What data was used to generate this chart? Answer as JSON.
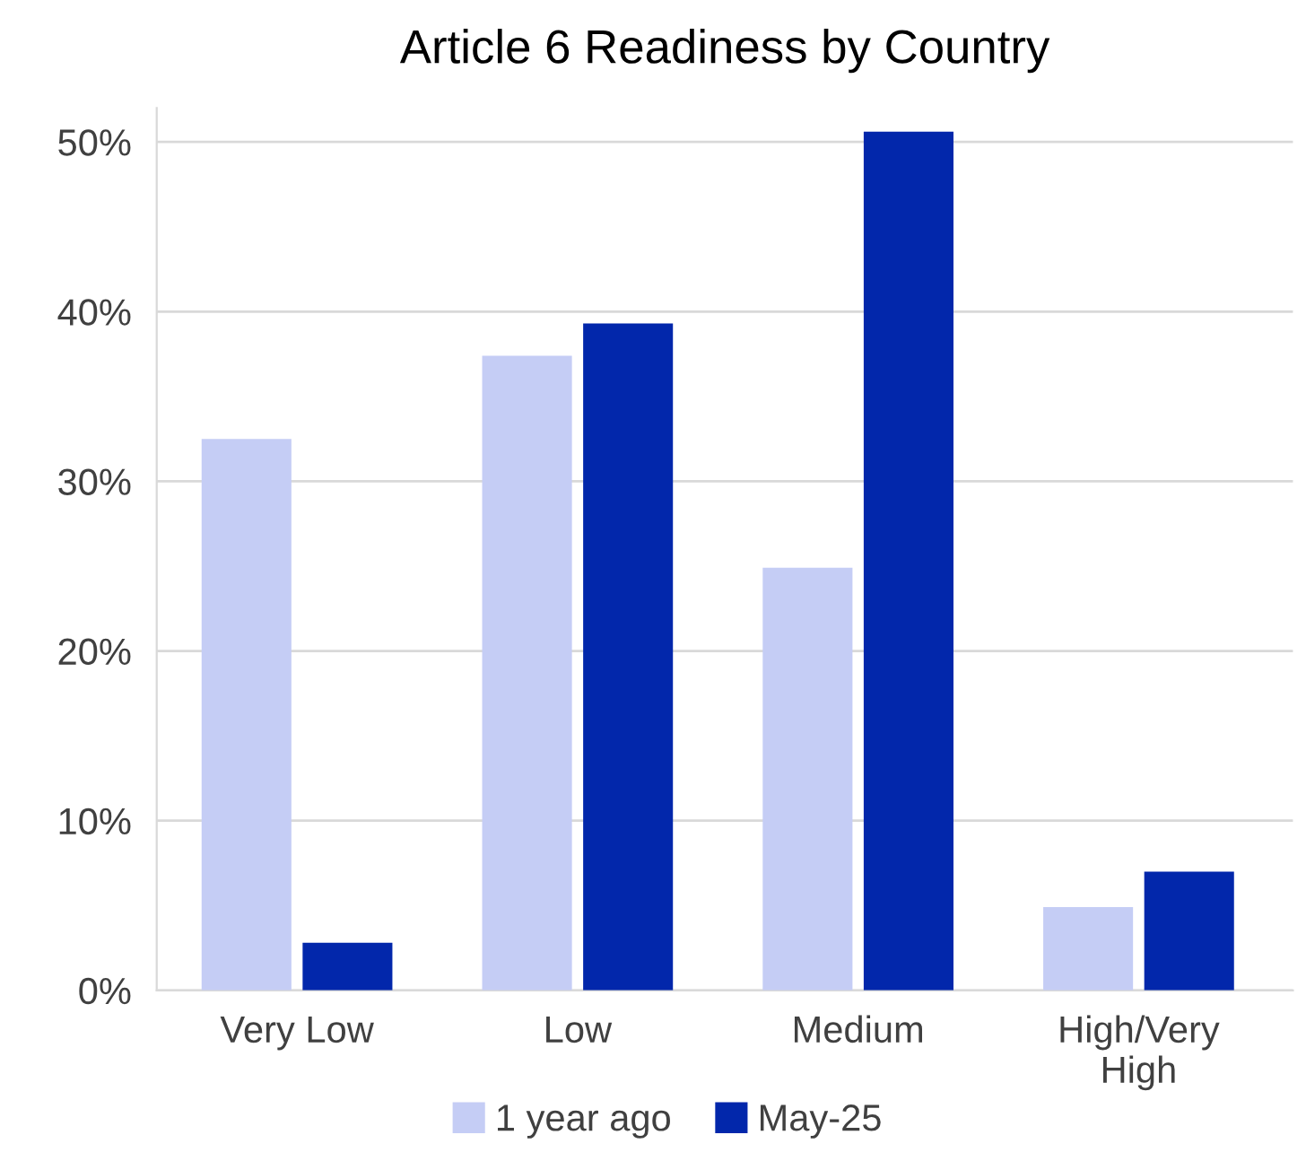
{
  "chart_data": {
    "type": "bar",
    "title": "Article 6 Readiness by Country",
    "categories": [
      "Very Low",
      "Low",
      "Medium",
      "High/Very\nHigh"
    ],
    "series": [
      {
        "name": "1 year ago",
        "color": "#c5cdf5",
        "values": [
          32.5,
          37.4,
          24.9,
          4.9
        ]
      },
      {
        "name": "May-25",
        "color": "#0227ab",
        "values": [
          2.8,
          39.3,
          50.6,
          7.0
        ]
      }
    ],
    "ylim": [
      0,
      52
    ],
    "yticks": [
      {
        "value": 0,
        "label": "0%"
      },
      {
        "value": 10,
        "label": "10%"
      },
      {
        "value": 20,
        "label": "20%"
      },
      {
        "value": 30,
        "label": "30%"
      },
      {
        "value": 40,
        "label": "40%"
      },
      {
        "value": 50,
        "label": "50%"
      }
    ],
    "grid": "y",
    "legend": "bottom"
  }
}
